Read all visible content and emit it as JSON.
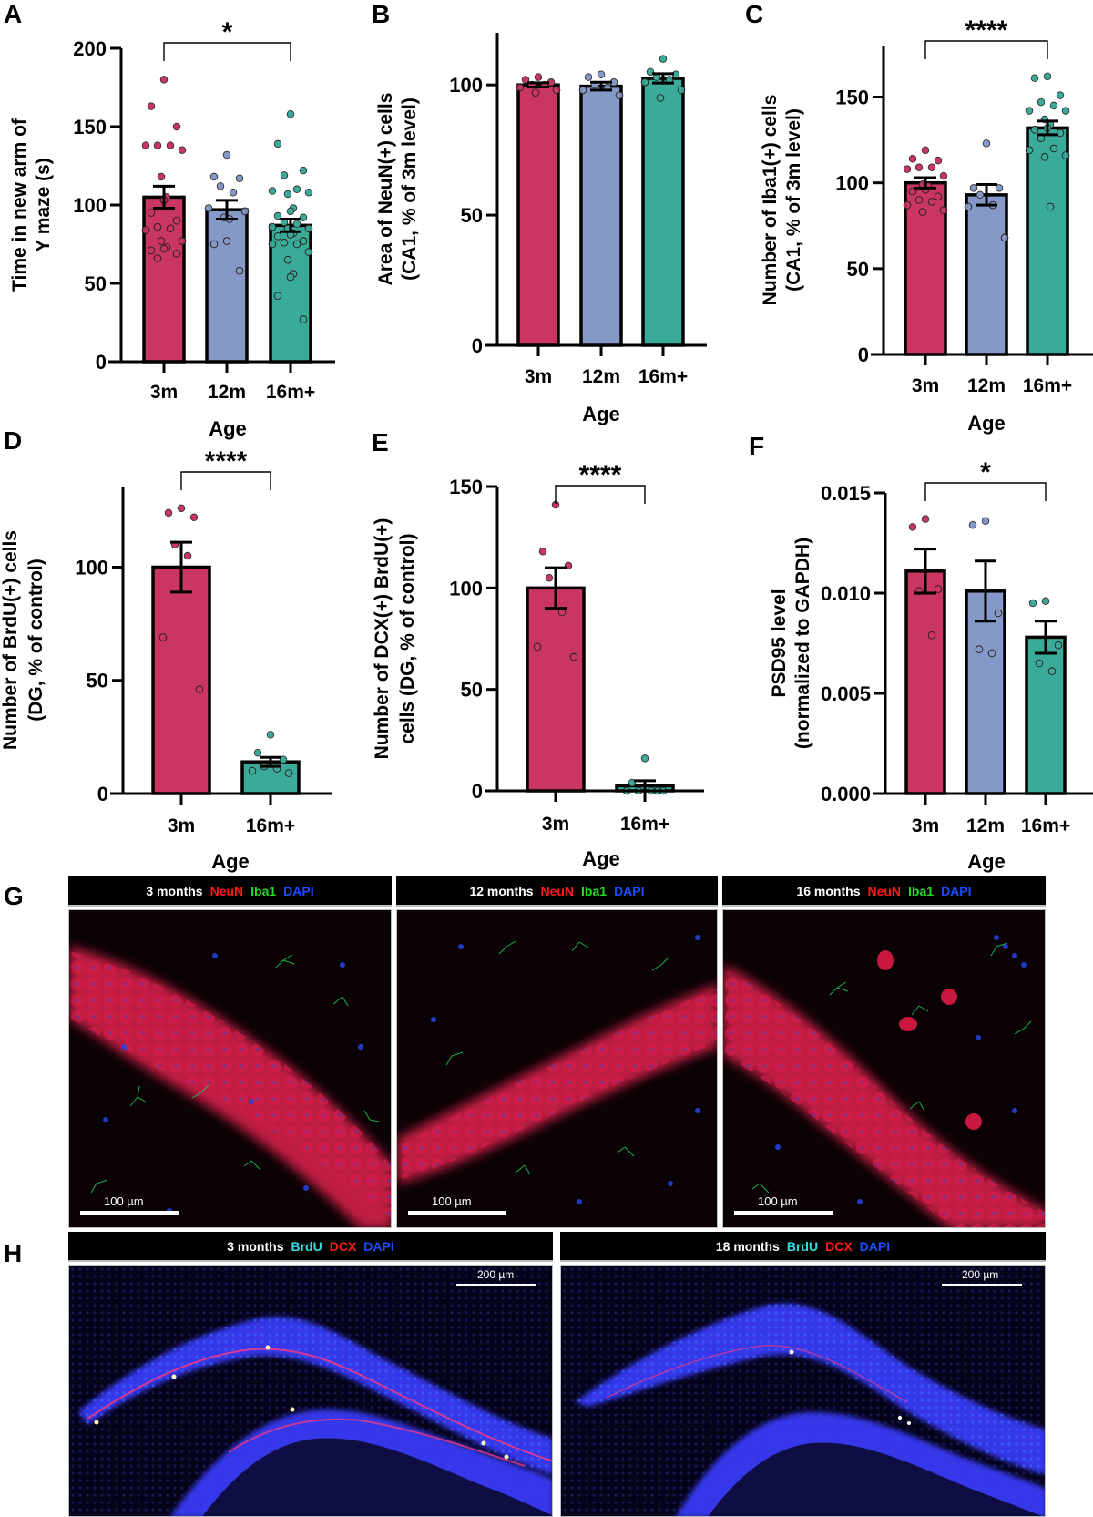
{
  "colors": {
    "group_3m": "#c93662",
    "group_12m": "#8499c8",
    "group_16m": "#3aab98",
    "axis": "#000000",
    "stain_neun": "#ff1a1a",
    "stain_iba1": "#22dd22",
    "stain_dapi": "#1a4dff",
    "stain_brdu": "#33e0e0",
    "stain_dcx": "#ff1a1a"
  },
  "panels": {
    "A": {
      "letter": "A"
    },
    "B": {
      "letter": "B"
    },
    "C": {
      "letter": "C"
    },
    "D": {
      "letter": "D"
    },
    "E": {
      "letter": "E"
    },
    "F": {
      "letter": "F"
    },
    "G": {
      "letter": "G"
    },
    "H": {
      "letter": "H"
    }
  },
  "chart_data": [
    {
      "panel": "A",
      "type": "bar",
      "categories": [
        "3m",
        "12m",
        "16m+"
      ],
      "values": [
        105,
        97,
        87
      ],
      "sem": [
        7,
        6,
        4
      ],
      "xlabel": "",
      "ylabel": "Time in new arm of Y maze (s)",
      "ylim": [
        0,
        200
      ],
      "yticks": [
        0,
        50,
        100,
        150,
        200
      ],
      "significance": [
        {
          "from": "3m",
          "to": "16m+",
          "label": "*"
        }
      ],
      "points": [
        [
          180,
          163,
          150,
          138,
          138,
          138,
          135,
          118,
          105,
          103,
          95,
          90,
          86,
          85,
          84,
          77,
          77,
          73,
          72,
          71,
          69,
          66
        ],
        [
          132,
          118,
          117,
          112,
          108,
          98,
          96,
          92,
          91,
          77,
          75,
          58
        ],
        [
          158,
          139,
          122,
          119,
          110,
          109,
          108,
          107,
          98,
          96,
          93,
          92,
          89,
          88,
          86,
          85,
          85,
          82,
          81,
          80,
          77,
          76,
          75,
          75,
          70,
          65,
          56,
          54,
          42,
          27
        ]
      ]
    },
    {
      "panel": "B",
      "type": "bar",
      "categories": [
        "3m",
        "12m",
        "16m+"
      ],
      "values": [
        100,
        99.5,
        102.5
      ],
      "sem": [
        0.8,
        1.5,
        1.8
      ],
      "xlabel": "Age",
      "ylabel": "Area of NeuN(+) cells (CA1, % of 3m level)",
      "ylim": [
        0,
        120
      ],
      "yticks": [
        0,
        50,
        100
      ],
      "significance": [],
      "points": [
        [
          103,
          102,
          101,
          100,
          100,
          99,
          98,
          97
        ],
        [
          104,
          103,
          101,
          100,
          99,
          98,
          96
        ],
        [
          110,
          105,
          104,
          103,
          102,
          101,
          98,
          95
        ]
      ]
    },
    {
      "panel": "C",
      "type": "bar",
      "categories": [
        "3m",
        "12m",
        "16m+"
      ],
      "values": [
        100,
        93,
        132
      ],
      "sem": [
        3,
        6,
        4
      ],
      "xlabel": "Age",
      "ylabel": "Number of Iba1(+) cells (CA1, % of 3m level)",
      "ylim": [
        0,
        180
      ],
      "yticks": [
        0,
        50,
        100,
        150
      ],
      "significance": [
        {
          "from": "3m",
          "to": "16m+",
          "label": "****"
        }
      ],
      "points": [
        [
          119,
          114,
          113,
          109,
          109,
          108,
          104,
          99,
          98,
          96,
          95,
          92,
          90,
          89,
          87,
          84,
          83
        ],
        [
          123,
          97,
          97,
          93,
          87,
          86,
          68
        ],
        [
          162,
          161,
          151,
          147,
          145,
          142,
          142,
          137,
          134,
          132,
          131,
          129,
          126,
          120,
          119,
          116,
          115,
          86
        ]
      ]
    },
    {
      "panel": "D",
      "type": "bar",
      "categories": [
        "3m",
        "16m+"
      ],
      "values": [
        100,
        14
      ],
      "sem": [
        11,
        2
      ],
      "xlabel": "Age",
      "ylabel": "Number of BrdU(+) cells (DG, % of control)",
      "ylim": [
        0,
        135
      ],
      "yticks": [
        0,
        50,
        100
      ],
      "significance": [
        {
          "from": "3m",
          "to": "16m+",
          "label": "****"
        }
      ],
      "points": [
        [
          126,
          124,
          122,
          110,
          105,
          69,
          46
        ],
        [
          26,
          18,
          15,
          12,
          11,
          10,
          9
        ]
      ]
    },
    {
      "panel": "E",
      "type": "bar",
      "categories": [
        "3m",
        "16m+"
      ],
      "values": [
        100,
        2.5
      ],
      "sem": [
        10,
        2.5
      ],
      "xlabel": "Age",
      "ylabel": "Number of DCX(+) BrdU(+) cells (DG, % of control)",
      "ylim": [
        0,
        150
      ],
      "yticks": [
        0,
        50,
        100,
        150
      ],
      "significance": [
        {
          "from": "3m",
          "to": "16m+",
          "label": "****"
        }
      ],
      "points": [
        [
          141,
          118,
          111,
          105,
          88,
          71,
          66
        ],
        [
          16,
          4,
          0,
          0,
          0,
          0,
          0
        ]
      ]
    },
    {
      "panel": "F",
      "type": "bar",
      "categories": [
        "3m",
        "12m",
        "16m+"
      ],
      "values": [
        0.0111,
        0.0101,
        0.0078
      ],
      "sem": [
        0.0011,
        0.0015,
        0.0008
      ],
      "xlabel": "Age",
      "ylabel": "PSD95 level (normalized to GAPDH)",
      "ylim": [
        0,
        0.015
      ],
      "yticks": [
        "0.000",
        "0.005",
        "0.010",
        "0.015"
      ],
      "significance": [
        {
          "from": "3m",
          "to": "16m+",
          "label": "*"
        }
      ],
      "points": [
        [
          0.0137,
          0.0133,
          0.0102,
          0.0101,
          0.0079
        ],
        [
          0.0136,
          0.0134,
          0.009,
          0.0072,
          0.007
        ],
        [
          0.0096,
          0.0095,
          0.0074,
          0.0065,
          0.0061
        ]
      ]
    }
  ],
  "axes": {
    "A": {
      "ylabel_l1": "Time in new arm of",
      "ylabel_l2": "Y maze (s)",
      "xlabel": "Age"
    },
    "B": {
      "ylabel_l1": "Area of NeuN(+) cells",
      "ylabel_l2": "(CA1, % of 3m level)",
      "xlabel": "Age"
    },
    "C": {
      "ylabel_l1": "Number of Iba1(+) cells",
      "ylabel_l2": "(CA1, % of 3m level)",
      "xlabel": "Age"
    },
    "D": {
      "ylabel_l1": "Number of BrdU(+) cells",
      "ylabel_l2": "(DG, % of control)",
      "xlabel": "Age"
    },
    "E": {
      "ylabel_l1": "Number of DCX(+) BrdU(+)",
      "ylabel_l2": "cells (DG, % of control)",
      "xlabel": "Age"
    },
    "F": {
      "ylabel_l1": "PSD95 level",
      "ylabel_l2": "(normalized to GAPDH)",
      "xlabel": "Age"
    }
  },
  "micrographs": {
    "G": [
      {
        "age": "3 months",
        "stains": [
          "NeuN",
          "Iba1",
          "DAPI"
        ],
        "scale": "100 µm"
      },
      {
        "age": "12 months",
        "stains": [
          "NeuN",
          "Iba1",
          "DAPI"
        ],
        "scale": "100 µm"
      },
      {
        "age": "16 months",
        "stains": [
          "NeuN",
          "Iba1",
          "DAPI"
        ],
        "scale": "100 µm"
      }
    ],
    "H": [
      {
        "age": "3 months",
        "stains": [
          "BrdU",
          "DCX",
          "DAPI"
        ],
        "scale": "200 µm"
      },
      {
        "age": "18 months",
        "stains": [
          "BrdU",
          "DCX",
          "DAPI"
        ],
        "scale": "200 µm"
      }
    ]
  }
}
